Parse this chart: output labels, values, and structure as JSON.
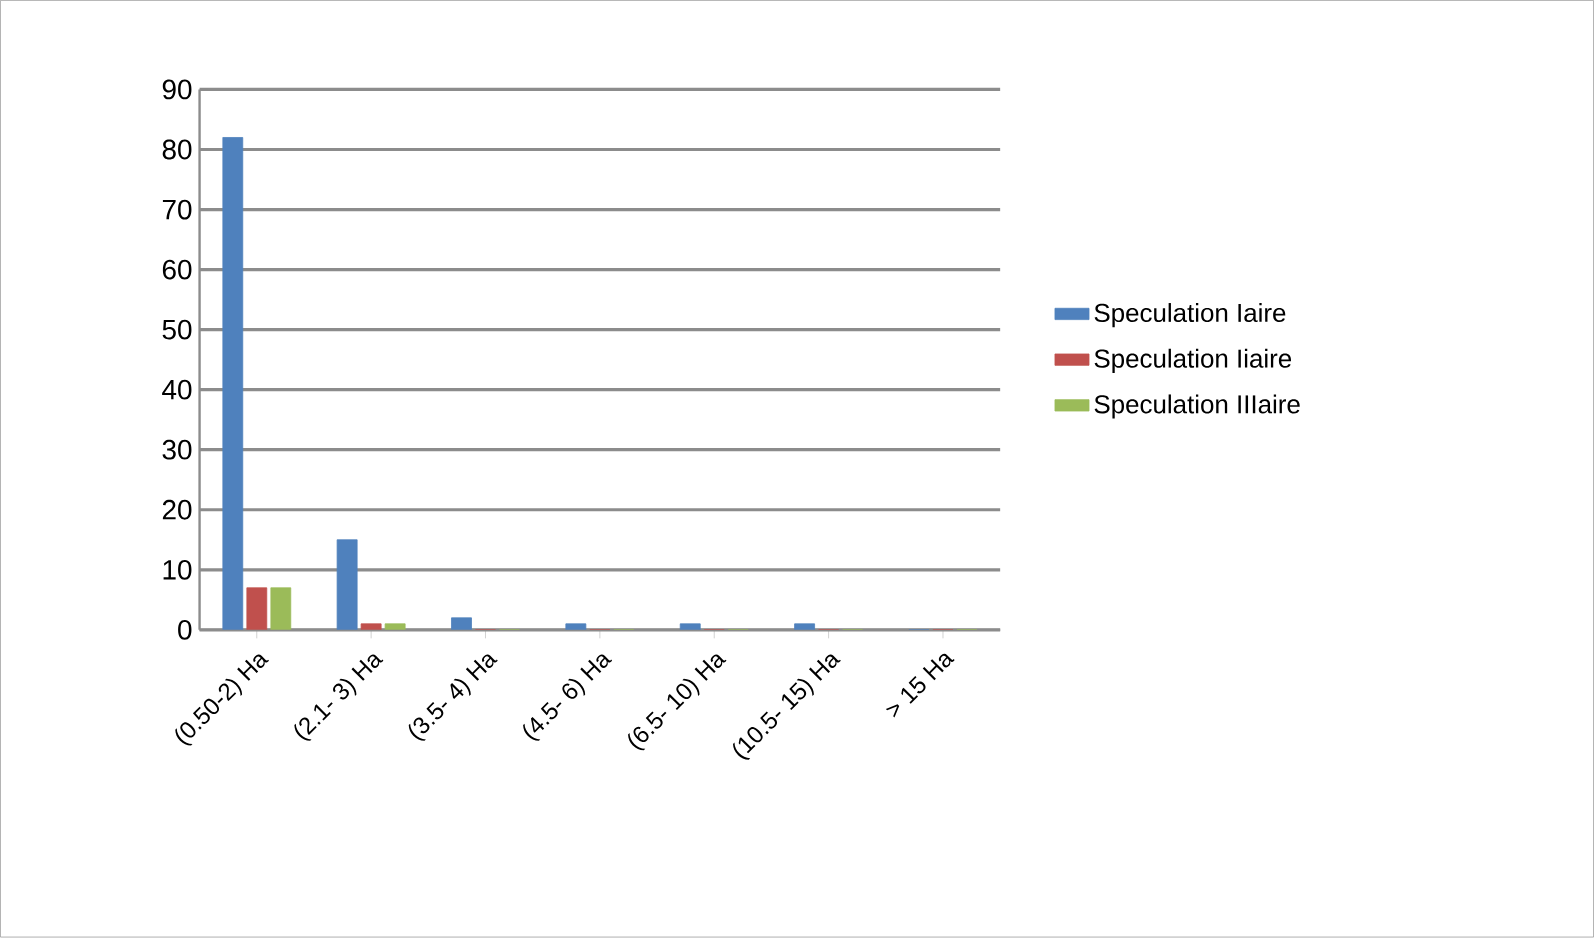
{
  "chart_data": {
    "type": "bar",
    "categories": [
      "(0.50-2) Ha",
      "(2.1- 3) Ha",
      "(3.5- 4) Ha",
      "(4.5- 6) Ha",
      "(6.5- 10) Ha",
      "(10.5- 15) Ha",
      "> 15 Ha"
    ],
    "series": [
      {
        "name": "Speculation Iaire",
        "color": "#4f81bd",
        "values": [
          82,
          15,
          2,
          1,
          1,
          1,
          0
        ]
      },
      {
        "name": "Speculation Iiaire",
        "color": "#c0504d",
        "values": [
          7,
          1,
          0,
          0,
          0,
          0,
          0
        ]
      },
      {
        "name": "Speculation IIIaire",
        "color": "#9bbb59",
        "values": [
          7,
          1,
          0,
          0,
          0,
          0,
          0
        ]
      }
    ],
    "ylim": [
      0,
      90
    ],
    "yticks": [
      0,
      10,
      20,
      30,
      40,
      50,
      60,
      70,
      80,
      90
    ],
    "grid": "y",
    "legend": "right"
  }
}
